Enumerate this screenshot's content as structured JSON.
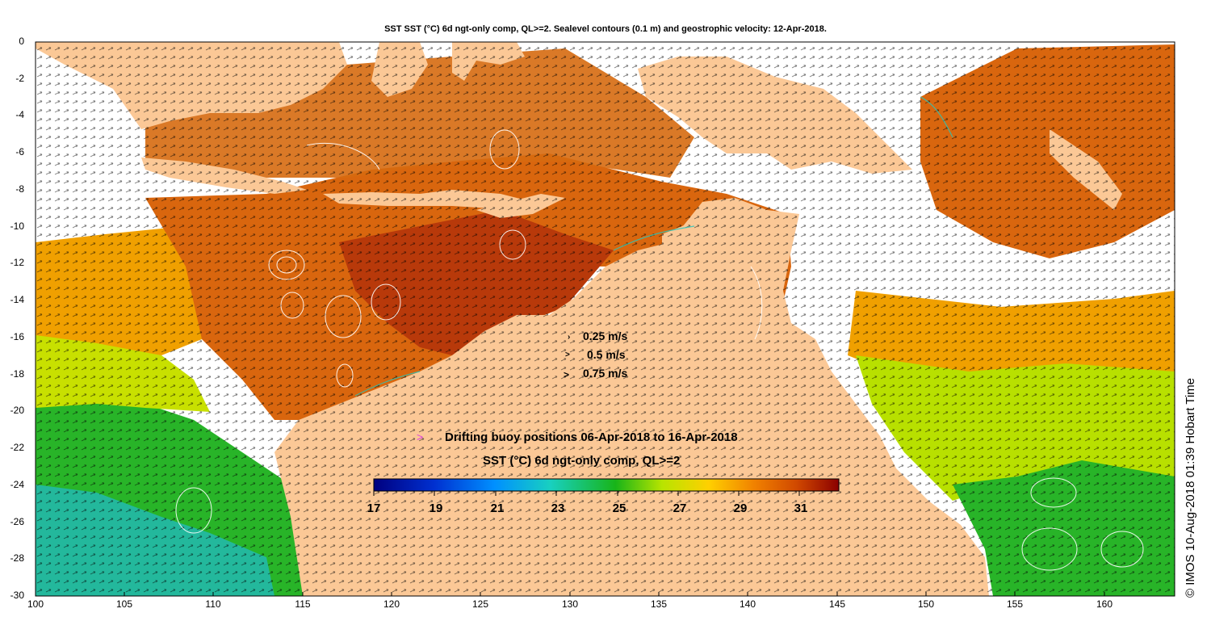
{
  "title": "SST SST (°C) 6d ngt-only comp, QL>=2. Sealevel contours (0.1 m) and geostrophic velocity: 12-Apr-2018.",
  "credit": "© IMOS 10-Aug-2018 01:39 Hobart Time",
  "legend": {
    "vectors": [
      {
        "label": "0.25 m/s",
        "value": 0.25
      },
      {
        "label": "0.5 m/s",
        "value": 0.5
      },
      {
        "label": "0.75 m/s",
        "value": 0.75
      }
    ],
    "buoy_label": "Drifting buoy positions 06-Apr-2018 to 16-Apr-2018",
    "colorbar_title": "SST (°C) 6d ngt-only comp, QL>=2",
    "colorbar_ticks": [
      "17",
      "19",
      "21",
      "23",
      "25",
      "27",
      "29",
      "31"
    ],
    "colorbar_range": [
      17,
      32.5
    ]
  },
  "axes": {
    "x_ticks": [
      "100",
      "105",
      "110",
      "115",
      "120",
      "125",
      "130",
      "135",
      "140",
      "145",
      "150",
      "155",
      "160"
    ],
    "y_ticks": [
      "0",
      "-2",
      "-4",
      "-6",
      "-8",
      "-10",
      "-12",
      "-14",
      "-16",
      "-18",
      "-20",
      "-22",
      "-24",
      "-26",
      "-28",
      "-30"
    ],
    "x_range": [
      100,
      164
    ],
    "y_range": [
      -30,
      0
    ]
  },
  "colors": {
    "land": "#fbc896",
    "warm_water": "#d9660e",
    "hot_water": "#b8390a",
    "mid_water": "#f0a000",
    "cool_water": "#9ed800",
    "green_water": "#28b428",
    "teal_water": "#22b8b0",
    "buoy": "#e040e0"
  }
}
